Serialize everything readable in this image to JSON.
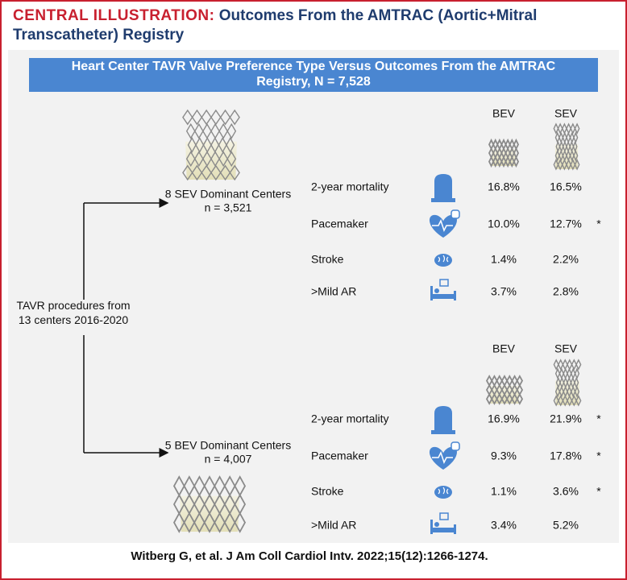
{
  "header": {
    "label": "CENTRAL ILLUSTRATION:",
    "title": "Outcomes From the AMTRAC (Aortic+Mitral Transcatheter) Registry"
  },
  "banner": "Heart Center TAVR Valve Preference Type Versus Outcomes From the AMTRAC Registry, N = 7,528",
  "source": "TAVR procedures from 13 centers 2016-2020",
  "groups": [
    {
      "name": "8 SEV Dominant Centers",
      "n": "n = 3,521",
      "columns": [
        "BEV",
        "SEV"
      ],
      "rows": [
        {
          "label": "2-year mortality",
          "values": [
            "16.8%",
            "16.5%"
          ]
        },
        {
          "label": "Pacemaker",
          "values": [
            "10.0%",
            "12.7%"
          ],
          "note": "*"
        },
        {
          "label": "Stroke",
          "values": [
            "1.4%",
            "2.2%"
          ]
        },
        {
          "label": ">Mild AR",
          "values": [
            "3.7%",
            "2.8%"
          ]
        }
      ]
    },
    {
      "name": "5 BEV Dominant Centers",
      "n": "n = 4,007",
      "columns": [
        "BEV",
        "SEV"
      ],
      "rows": [
        {
          "label": "2-year mortality",
          "values": [
            "16.9%",
            "21.9%"
          ],
          "note": "*"
        },
        {
          "label": "Pacemaker",
          "values": [
            "9.3%",
            "17.8%"
          ],
          "note": "*"
        },
        {
          "label": "Stroke",
          "values": [
            "1.1%",
            "3.6%"
          ],
          "note": "*"
        },
        {
          "label": ">Mild AR",
          "values": [
            "3.4%",
            "5.2%"
          ]
        }
      ]
    }
  ],
  "citation": "Witberg G, et al. J Am Coll Cardiol Intv. 2022;15(12):1266-1274."
}
